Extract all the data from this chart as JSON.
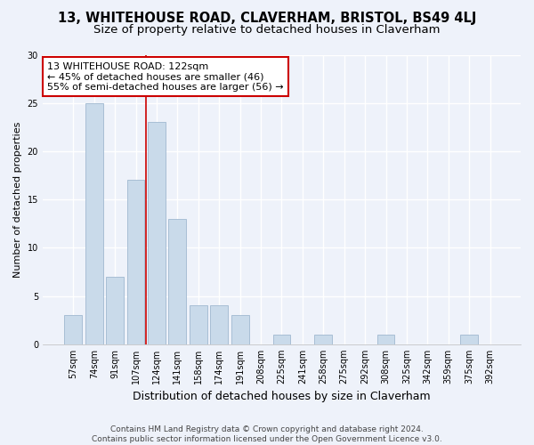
{
  "title": "13, WHITEHOUSE ROAD, CLAVERHAM, BRISTOL, BS49 4LJ",
  "subtitle": "Size of property relative to detached houses in Claverham",
  "xlabel": "Distribution of detached houses by size in Claverham",
  "ylabel": "Number of detached properties",
  "categories": [
    "57sqm",
    "74sqm",
    "91sqm",
    "107sqm",
    "124sqm",
    "141sqm",
    "158sqm",
    "174sqm",
    "191sqm",
    "208sqm",
    "225sqm",
    "241sqm",
    "258sqm",
    "275sqm",
    "292sqm",
    "308sqm",
    "325sqm",
    "342sqm",
    "359sqm",
    "375sqm",
    "392sqm"
  ],
  "values": [
    3,
    25,
    7,
    17,
    23,
    13,
    4,
    4,
    3,
    0,
    1,
    0,
    1,
    0,
    0,
    1,
    0,
    0,
    0,
    1,
    0
  ],
  "bar_color": "#c9daea",
  "bar_edgecolor": "#a0b8d0",
  "vline_x": 3.5,
  "vline_color": "#cc0000",
  "annotation_text": "13 WHITEHOUSE ROAD: 122sqm\n← 45% of detached houses are smaller (46)\n55% of semi-detached houses are larger (56) →",
  "annotation_box_color": "white",
  "annotation_box_edgecolor": "#cc0000",
  "ylim": [
    0,
    30
  ],
  "yticks": [
    0,
    5,
    10,
    15,
    20,
    25,
    30
  ],
  "footer": "Contains HM Land Registry data © Crown copyright and database right 2024.\nContains public sector information licensed under the Open Government Licence v3.0.",
  "bg_color": "#eef2fa",
  "plot_bg_color": "#eef2fa",
  "grid_color": "white",
  "title_fontsize": 10.5,
  "subtitle_fontsize": 9.5,
  "ylabel_fontsize": 8,
  "xlabel_fontsize": 9,
  "tick_fontsize": 7,
  "footer_fontsize": 6.5,
  "annotation_fontsize": 8
}
